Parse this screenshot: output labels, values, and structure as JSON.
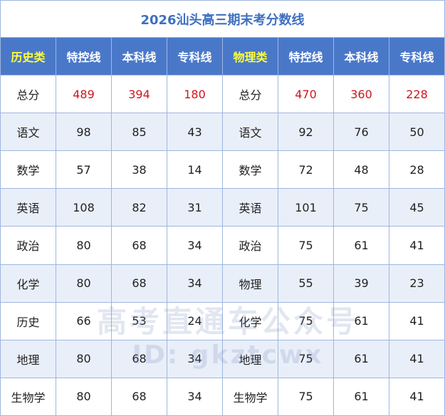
{
  "title": "2026汕头高三期末考分数线",
  "table": {
    "header": [
      "历史类",
      "特控线",
      "本科线",
      "专科线",
      "物理类",
      "特控线",
      "本科线",
      "专科线"
    ],
    "rows": [
      [
        "总分",
        489,
        394,
        180,
        "总分",
        470,
        360,
        228
      ],
      [
        "语文",
        98,
        85,
        43,
        "语文",
        92,
        76,
        50
      ],
      [
        "数学",
        57,
        38,
        14,
        "数学",
        72,
        48,
        28
      ],
      [
        "英语",
        108,
        82,
        31,
        "英语",
        101,
        75,
        45
      ],
      [
        "政治",
        80,
        68,
        34,
        "政治",
        75,
        61,
        41
      ],
      [
        "化学",
        80,
        68,
        34,
        "物理",
        55,
        39,
        23
      ],
      [
        "历史",
        66,
        53,
        24,
        "化学",
        75,
        61,
        41
      ],
      [
        "地理",
        80,
        68,
        34,
        "地理",
        75,
        61,
        41
      ],
      [
        "生物学",
        80,
        68,
        34,
        "生物学",
        75,
        61,
        41
      ]
    ]
  },
  "watermark": [
    "高考直通车公众号",
    "ID: gkztcwx"
  ]
}
